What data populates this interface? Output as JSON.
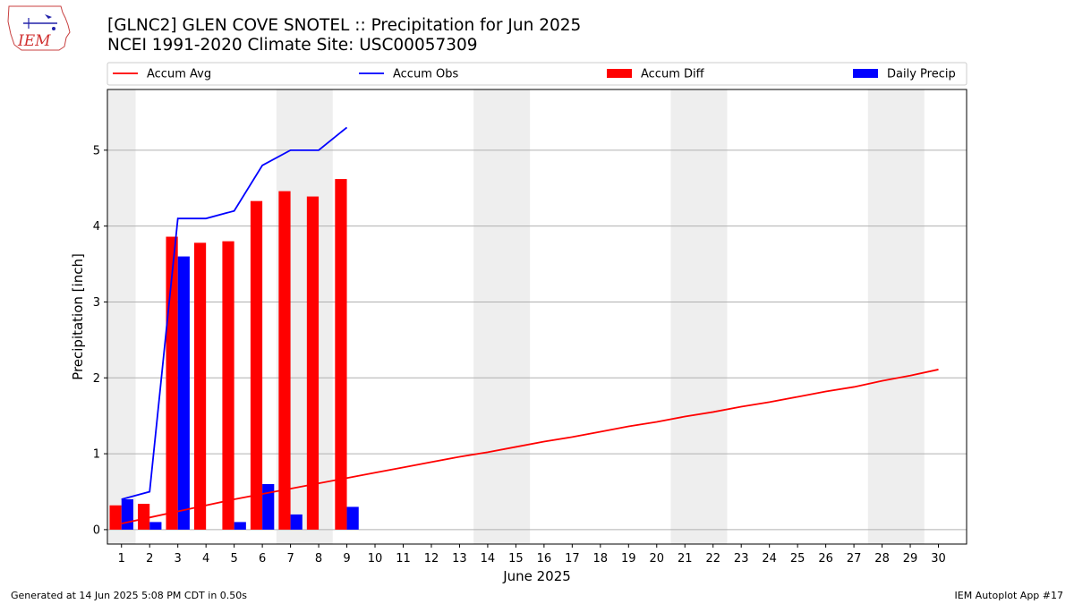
{
  "header": {
    "title_line1": "[GLNC2] GLEN COVE SNOTEL :: Precipitation for Jun 2025",
    "title_line2": "NCEI 1991-2020 Climate Site: USC00057309"
  },
  "logo": {
    "text": "IEM",
    "icon": "iem-logo-icon"
  },
  "footer": {
    "left": "Generated at 14 Jun 2025 5:08 PM CDT in 0.50s",
    "right": "IEM Autoplot App #17"
  },
  "chart_data": {
    "type": "bar",
    "xlabel": "June 2025",
    "ylabel": "Precipitation [inch]",
    "xlim": [
      0.5,
      31
    ],
    "ylim": [
      -0.19,
      5.8
    ],
    "yticks": [
      0,
      1,
      2,
      3,
      4,
      5
    ],
    "categories": [
      "1",
      "2",
      "3",
      "4",
      "5",
      "6",
      "7",
      "8",
      "9",
      "10",
      "11",
      "12",
      "13",
      "14",
      "15",
      "16",
      "17",
      "18",
      "19",
      "20",
      "21",
      "22",
      "23",
      "24",
      "25",
      "26",
      "27",
      "28",
      "29",
      "30"
    ],
    "weekend_days": [
      1,
      7,
      8,
      14,
      15,
      21,
      22,
      28,
      29
    ],
    "grid": "y",
    "legend_position": "top",
    "colors": {
      "avg": "#ff0000",
      "obs": "#0000ff",
      "diff": "#ff0000",
      "daily": "#0000ff",
      "weekend": "#eeeeee"
    },
    "series": [
      {
        "name": "Accum Avg",
        "type": "line",
        "color": "#ff0000",
        "x": [
          1,
          2,
          3,
          4,
          5,
          6,
          7,
          8,
          9,
          10,
          11,
          12,
          13,
          14,
          15,
          16,
          17,
          18,
          19,
          20,
          21,
          22,
          23,
          24,
          25,
          26,
          27,
          28,
          29,
          30
        ],
        "values": [
          0.08,
          0.16,
          0.24,
          0.32,
          0.4,
          0.47,
          0.54,
          0.61,
          0.68,
          0.75,
          0.82,
          0.89,
          0.96,
          1.02,
          1.09,
          1.16,
          1.22,
          1.29,
          1.36,
          1.42,
          1.49,
          1.55,
          1.62,
          1.68,
          1.75,
          1.82,
          1.88,
          1.96,
          2.03,
          2.11
        ]
      },
      {
        "name": "Accum Obs",
        "type": "line",
        "color": "#0000ff",
        "x": [
          1,
          2,
          3,
          4,
          5,
          6,
          7,
          8,
          9
        ],
        "values": [
          0.4,
          0.5,
          4.1,
          4.1,
          4.2,
          4.8,
          5.0,
          5.0,
          5.3
        ]
      },
      {
        "name": "Accum Diff",
        "type": "bar",
        "color": "#ff0000",
        "x": [
          1,
          2,
          3,
          4,
          5,
          6,
          7,
          8,
          9
        ],
        "values": [
          0.32,
          0.34,
          3.86,
          3.78,
          3.8,
          4.33,
          4.46,
          4.39,
          4.62
        ]
      },
      {
        "name": "Daily Precip",
        "type": "bar",
        "color": "#0000ff",
        "x": [
          1,
          2,
          3,
          4,
          5,
          6,
          7,
          8,
          9
        ],
        "values": [
          0.4,
          0.1,
          3.6,
          0.0,
          0.1,
          0.6,
          0.2,
          0.0,
          0.3
        ]
      }
    ]
  }
}
